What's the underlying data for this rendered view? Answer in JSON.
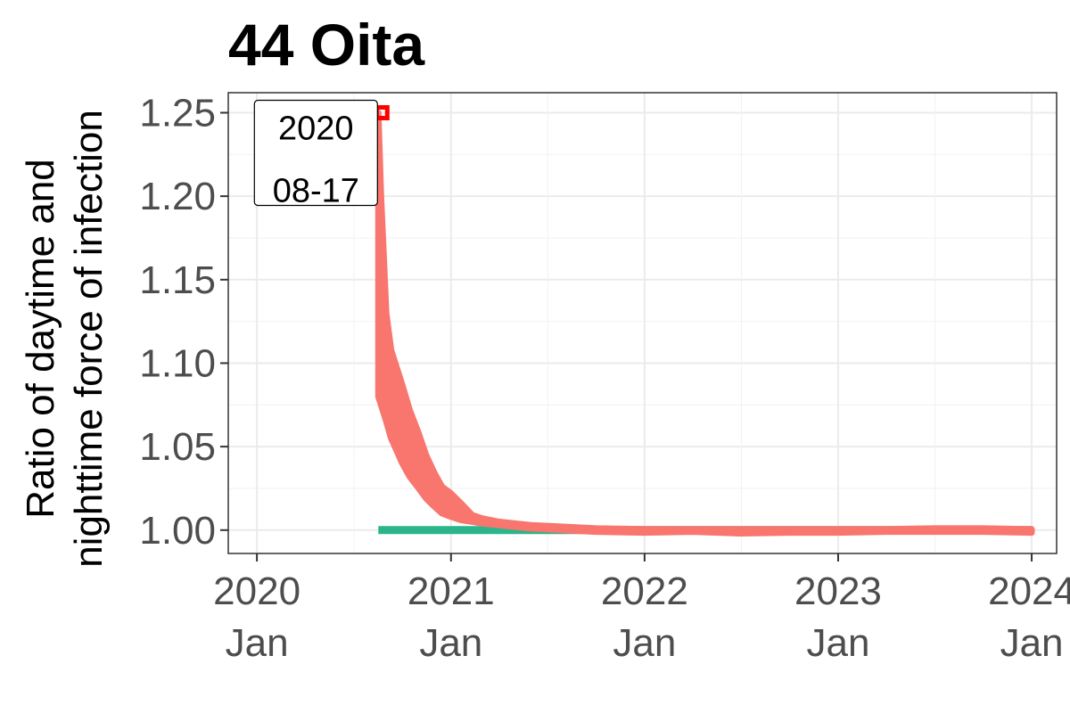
{
  "chart_data": {
    "type": "line",
    "title": "44 Oita",
    "ylabel": [
      "Ratio of daytime and",
      "nighttime force of infection"
    ],
    "xlabel": "",
    "y_ticks": [
      1.0,
      1.05,
      1.1,
      1.15,
      1.2,
      1.25
    ],
    "y_tick_labels": [
      "1.00",
      "1.05",
      "1.10",
      "1.15",
      "1.20",
      "1.25"
    ],
    "ylim": [
      0.986,
      1.262
    ],
    "x_ticks": [
      "2020-01-01",
      "2021-01-01",
      "2022-01-01",
      "2023-01-01",
      "2024-01-01"
    ],
    "x_tick_labels": [
      [
        "2020",
        "Jan"
      ],
      [
        "2021",
        "Jan"
      ],
      [
        "2022",
        "Jan"
      ],
      [
        "2023",
        "Jan"
      ],
      [
        "2024",
        "Jan"
      ]
    ],
    "xlim": [
      "2019-11-08",
      "2024-02-17"
    ],
    "grid": true,
    "series": [
      {
        "color": "#f8766d",
        "band_points": [
          [
            "2020-08-17",
            1.08,
            1.25
          ],
          [
            "2020-08-22",
            1.075,
            1.2
          ],
          [
            "2020-08-27",
            1.07,
            1.165
          ],
          [
            "2020-09-01",
            1.065,
            1.13
          ],
          [
            "2020-09-10",
            1.055,
            1.108
          ],
          [
            "2020-09-20",
            1.048,
            1.098
          ],
          [
            "2020-10-01",
            1.04,
            1.087
          ],
          [
            "2020-10-15",
            1.032,
            1.072
          ],
          [
            "2020-11-01",
            1.025,
            1.058
          ],
          [
            "2020-11-15",
            1.019,
            1.045
          ],
          [
            "2020-12-01",
            1.014,
            1.034
          ],
          [
            "2020-12-15",
            1.01,
            1.026
          ],
          [
            "2021-01-01",
            1.008,
            1.022
          ],
          [
            "2021-01-20",
            1.006,
            1.016
          ],
          [
            "2021-02-10",
            1.005,
            1.009
          ],
          [
            "2021-03-01",
            1.004,
            1.007
          ],
          [
            "2021-04-01",
            1.003,
            1.005
          ],
          [
            "2021-05-01",
            1.002,
            1.004
          ],
          [
            "2021-06-01",
            1.001,
            1.003
          ],
          [
            "2021-08-01",
            1.0,
            1.002
          ],
          [
            "2021-10-01",
            0.999,
            1.001
          ],
          [
            "2022-01-01",
            0.9985,
            1.0005
          ],
          [
            "2022-04-01",
            0.999,
            1.0005
          ],
          [
            "2022-07-01",
            0.998,
            1.0005
          ],
          [
            "2022-10-01",
            0.9985,
            1.0005
          ],
          [
            "2023-01-01",
            0.9985,
            1.0005
          ],
          [
            "2023-04-01",
            0.999,
            1.0005
          ],
          [
            "2023-07-01",
            0.999,
            1.001
          ],
          [
            "2023-10-01",
            0.999,
            1.001
          ],
          [
            "2024-01-01",
            0.9985,
            1.0005
          ]
        ]
      },
      {
        "color": "#2bb58a",
        "points": [
          [
            "2020-08-17",
            1.0
          ],
          [
            "2024-01-01",
            1.0
          ]
        ]
      }
    ],
    "annotations": [
      {
        "x": "2020-08-17",
        "y": 1.25,
        "lines": [
          "2020",
          "08-17"
        ],
        "marker_color": "#ff0000"
      }
    ]
  }
}
